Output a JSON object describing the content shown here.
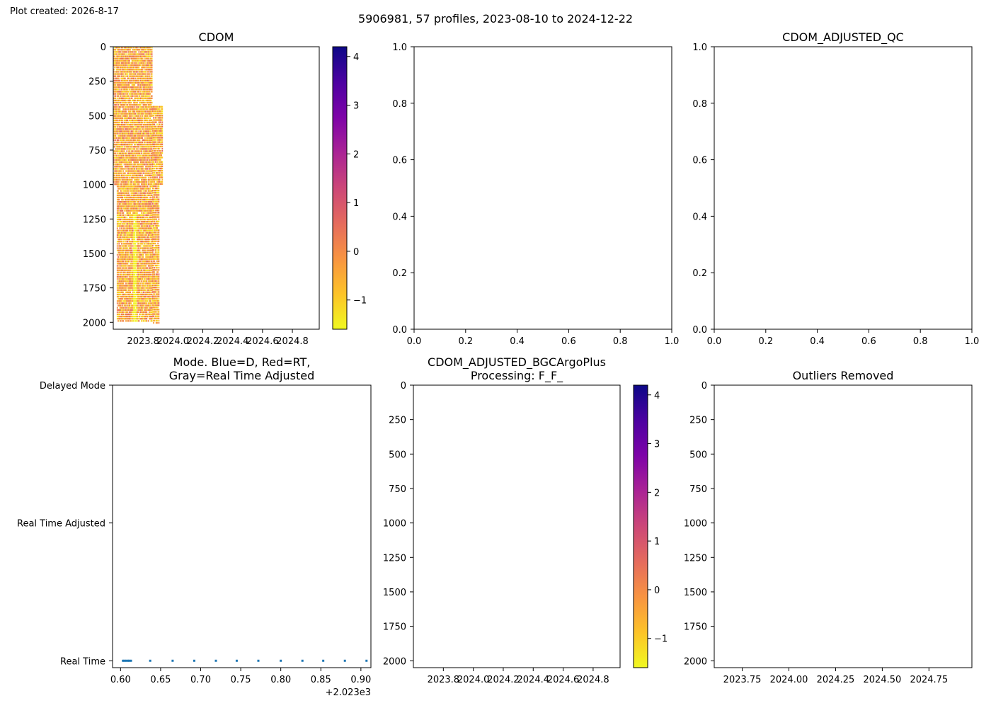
{
  "figure": {
    "created_label": "Plot created: 2026-8-17",
    "suptitle": "5906981, 57 profiles, 2023-08-10 to 2024-12-22"
  },
  "chart_data": [
    {
      "id": "cdom",
      "type": "heatmap",
      "title": "CDOM",
      "xlim": [
        2023.6,
        2024.98
      ],
      "ylim": [
        2050,
        0
      ],
      "xticks": [
        2023.8,
        2024.0,
        2024.2,
        2024.4,
        2024.6,
        2024.8
      ],
      "xtick_labels": [
        "2023.8",
        "2024.0",
        "2024.2",
        "2024.4",
        "2024.6",
        "2024.8"
      ],
      "yticks": [
        0,
        250,
        500,
        750,
        1000,
        1250,
        1500,
        1750,
        2000
      ],
      "data_extent": {
        "x": [
          2023.6,
          2023.93
        ],
        "depth": [
          0,
          2000
        ]
      },
      "colormap": "plasma_r",
      "colorbar": {
        "range": [
          -1.6,
          4.2
        ],
        "ticks": [
          -1,
          0,
          1,
          2,
          3,
          4
        ],
        "tick_labels": [
          "−1",
          "0",
          "1",
          "2",
          "3",
          "4"
        ]
      },
      "typical_value_range": [
        -1.4,
        0.6
      ]
    },
    {
      "id": "blank",
      "type": "line",
      "title": "",
      "xlim": [
        0,
        1
      ],
      "ylim": [
        0,
        1
      ],
      "xticks": [
        0.0,
        0.2,
        0.4,
        0.6,
        0.8,
        1.0
      ],
      "xtick_labels": [
        "0.0",
        "0.2",
        "0.4",
        "0.6",
        "0.8",
        "1.0"
      ],
      "yticks": [
        0.0,
        0.2,
        0.4,
        0.6,
        0.8,
        1.0
      ],
      "ytick_labels": [
        "0.0",
        "0.2",
        "0.4",
        "0.6",
        "0.8",
        "1.0"
      ]
    },
    {
      "id": "qc",
      "type": "line",
      "title": "CDOM_ADJUSTED_QC",
      "xlim": [
        0,
        1
      ],
      "ylim": [
        0,
        1
      ],
      "xticks": [
        0.0,
        0.2,
        0.4,
        0.6,
        0.8,
        1.0
      ],
      "xtick_labels": [
        "0.0",
        "0.2",
        "0.4",
        "0.6",
        "0.8",
        "1.0"
      ],
      "yticks": [
        0.0,
        0.2,
        0.4,
        0.6,
        0.8,
        1.0
      ],
      "ytick_labels": [
        "0.0",
        "0.2",
        "0.4",
        "0.6",
        "0.8",
        "1.0"
      ]
    },
    {
      "id": "mode",
      "type": "scatter",
      "title": "Mode. Blue=D, Red=RT,\nGray=Real Time Adjusted",
      "xlim": [
        0.59,
        0.9125
      ],
      "xticks": [
        0.6,
        0.65,
        0.7,
        0.75,
        0.8,
        0.85,
        0.9
      ],
      "xtick_labels": [
        "0.60",
        "0.65",
        "0.70",
        "0.75",
        "0.80",
        "0.85",
        "0.90"
      ],
      "x_offset_label": "+2.023e3",
      "yticks": [
        0,
        1,
        2
      ],
      "ytick_labels": [
        "Real Time",
        "Real Time Adjusted",
        "Delayed Mode"
      ],
      "ylim": [
        -0.05,
        2.0
      ],
      "marker_color": "#1f77b4",
      "points": [
        {
          "x": 0.603,
          "y": 0
        },
        {
          "x": 0.605,
          "y": 0
        },
        {
          "x": 0.607,
          "y": 0
        },
        {
          "x": 0.609,
          "y": 0
        },
        {
          "x": 0.611,
          "y": 0
        },
        {
          "x": 0.613,
          "y": 0
        },
        {
          "x": 0.637,
          "y": 0
        },
        {
          "x": 0.665,
          "y": 0
        },
        {
          "x": 0.692,
          "y": 0
        },
        {
          "x": 0.719,
          "y": 0
        },
        {
          "x": 0.745,
          "y": 0
        },
        {
          "x": 0.772,
          "y": 0
        },
        {
          "x": 0.8,
          "y": 0
        },
        {
          "x": 0.827,
          "y": 0
        },
        {
          "x": 0.853,
          "y": 0
        },
        {
          "x": 0.88,
          "y": 0
        },
        {
          "x": 0.907,
          "y": 0
        }
      ]
    },
    {
      "id": "bgc",
      "type": "heatmap",
      "title": "CDOM_ADJUSTED_BGCArgoPlus\nProcessing: F_F_",
      "xlim": [
        2023.6,
        2024.98
      ],
      "ylim": [
        2050,
        0
      ],
      "xticks": [
        2023.8,
        2024.0,
        2024.2,
        2024.4,
        2024.6,
        2024.8
      ],
      "xtick_labels": [
        "2023.8",
        "2024.0",
        "2024.2",
        "2024.4",
        "2024.6",
        "2024.8"
      ],
      "yticks": [
        0,
        250,
        500,
        750,
        1000,
        1250,
        1500,
        1750,
        2000
      ],
      "colormap": "plasma_r",
      "colorbar": {
        "range": [
          -1.6,
          4.2
        ],
        "ticks": [
          -1,
          0,
          1,
          2,
          3,
          4
        ],
        "tick_labels": [
          "−1",
          "0",
          "1",
          "2",
          "3",
          "4"
        ]
      }
    },
    {
      "id": "outliers",
      "type": "heatmap",
      "title": "Outliers Removed",
      "xlim": [
        2023.6,
        2024.98
      ],
      "ylim": [
        2050,
        0
      ],
      "xticks": [
        2023.75,
        2024.0,
        2024.25,
        2024.5,
        2024.75
      ],
      "xtick_labels": [
        "2023.75",
        "2024.00",
        "2024.25",
        "2024.50",
        "2024.75"
      ],
      "yticks": [
        0,
        250,
        500,
        750,
        1000,
        1250,
        1500,
        1750,
        2000
      ]
    }
  ]
}
